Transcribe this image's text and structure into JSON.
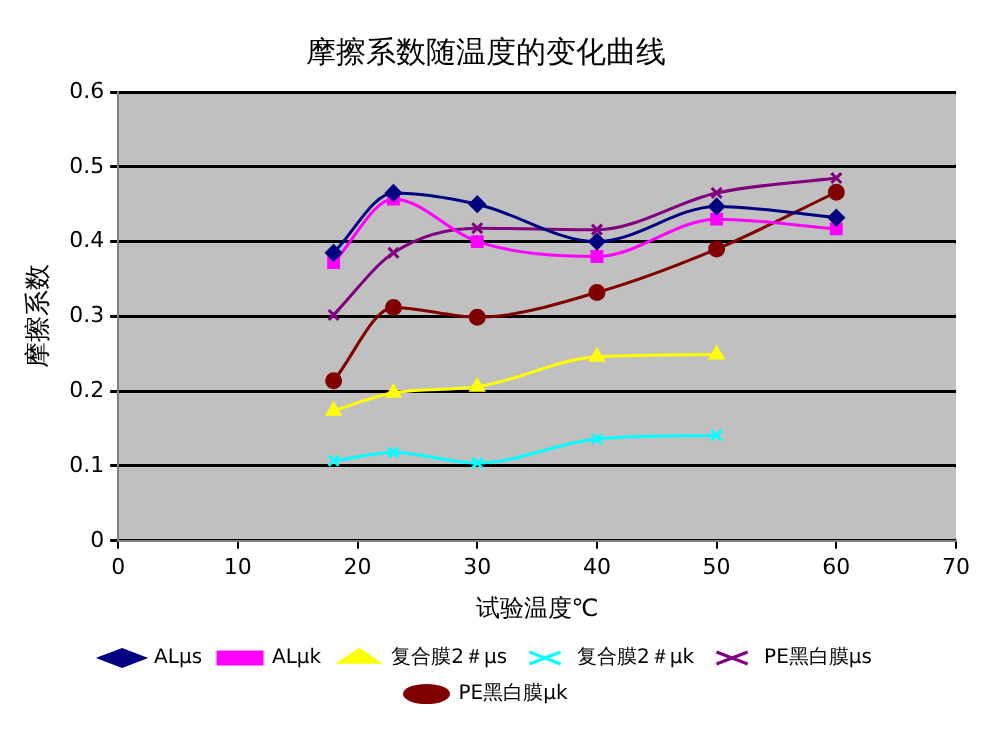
{
  "chart_data": {
    "type": "line",
    "title": "摩擦系数随温度的变化曲线",
    "xlabel": "试验温度℃",
    "ylabel": "摩擦系数",
    "x": [
      18,
      23,
      30,
      40,
      50,
      60
    ],
    "series": [
      {
        "name": "ALμs",
        "color": "#000080",
        "marker": "diamond",
        "values": [
          0.385,
          0.465,
          0.45,
          0.4,
          0.447,
          0.432
        ]
      },
      {
        "name": "ALμk",
        "color": "#ff00ff",
        "marker": "square",
        "values": [
          0.372,
          0.457,
          0.4,
          0.38,
          0.43,
          0.417
        ]
      },
      {
        "name": "复合膜2＃μs",
        "color": "#ffff00",
        "marker": "triangle",
        "values": [
          0.174,
          0.198,
          0.206,
          0.246,
          0.249,
          null
        ]
      },
      {
        "name": "复合膜2＃μk",
        "color": "#00ffff",
        "marker": "cross",
        "values": [
          0.107,
          0.118,
          0.104,
          0.136,
          0.141,
          null
        ]
      },
      {
        "name": "PE黑白膜μs",
        "color": "#800080",
        "marker": "cross",
        "values": [
          0.302,
          0.385,
          0.418,
          0.416,
          0.465,
          0.485
        ]
      },
      {
        "name": "PE黑白膜μk",
        "color": "#800000",
        "marker": "circle",
        "values": [
          0.214,
          0.312,
          0.299,
          0.332,
          0.39,
          0.466
        ]
      }
    ],
    "xlim": [
      0,
      70
    ],
    "xticks": [
      0,
      10,
      20,
      30,
      40,
      50,
      60,
      70
    ],
    "ylim": [
      0,
      0.6
    ],
    "yticks": [
      0,
      0.1,
      0.2,
      0.3,
      0.4,
      0.5,
      0.6
    ],
    "grid": "y",
    "legend": "bottom"
  }
}
